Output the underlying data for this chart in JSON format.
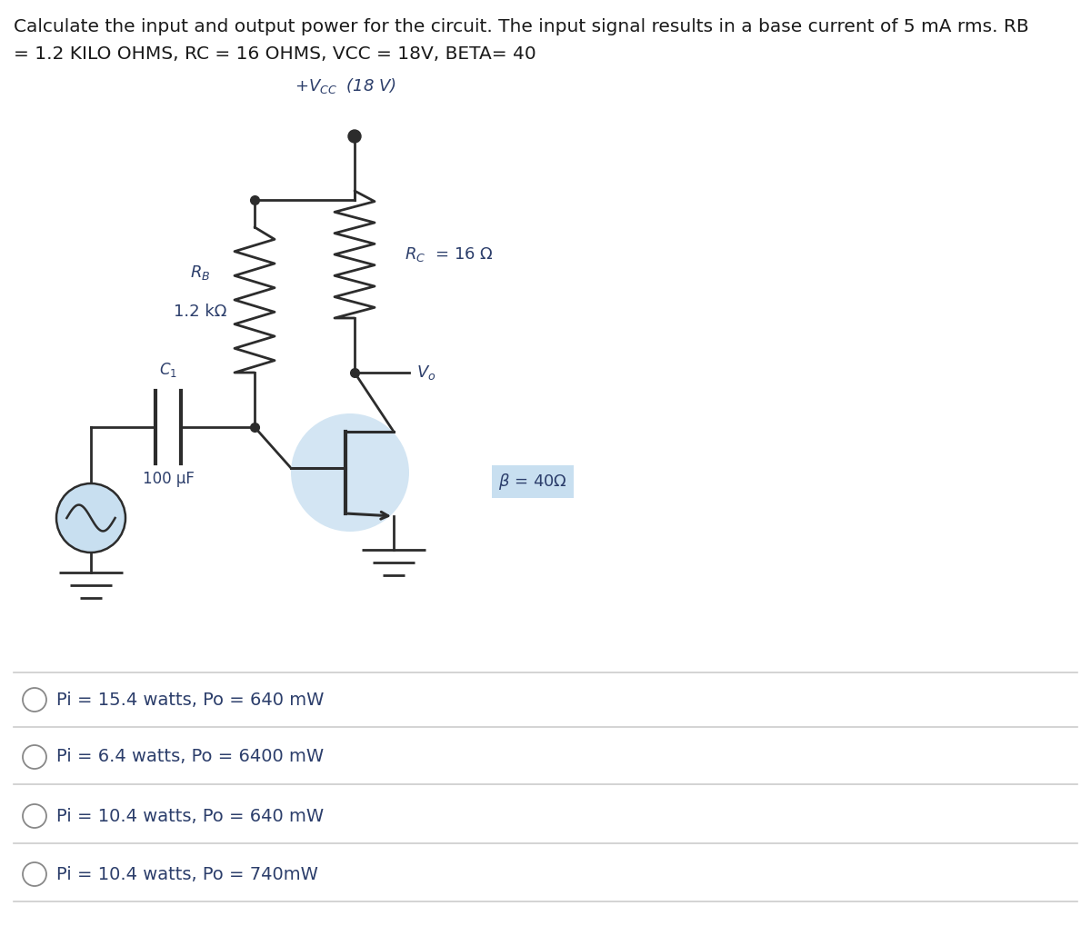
{
  "title_line1": "Calculate the input and output power for the circuit. The input signal results in a base current of 5 mA rms. RB",
  "title_line2": "= 1.2 KILO OHMS, RC = 16 OHMS, VCC = 18V, BETA= 40",
  "vcc_label": "+$V_{CC}$  (18 V)",
  "rb_label1": "$R_B$",
  "rb_label2": "1.2 kΩ",
  "rc_label": "$R_C$  = 16 Ω",
  "vo_label": "$V_o$",
  "c1_label1": "$C_1$",
  "c1_label2": "100 μF",
  "beta_label": "β = 40Ω",
  "options": [
    "Pi = 15.4 watts, Po = 640 mW",
    "Pi = 6.4 watts, Po = 6400 mW",
    "Pi = 10.4 watts, Po = 640 mW",
    "Pi = 10.4 watts, Po = 740mW"
  ],
  "bg_color": "#ffffff",
  "text_color": "#2c3e6b",
  "circuit_color": "#2c2c2c",
  "title_color": "#1a1a1a",
  "option_color": "#2c3e6b",
  "transistor_fill": "#c8dff0",
  "source_fill": "#c8dff0",
  "beta_box_color": "#c8dff0",
  "separator_color": "#cccccc",
  "radio_color": "#888888"
}
